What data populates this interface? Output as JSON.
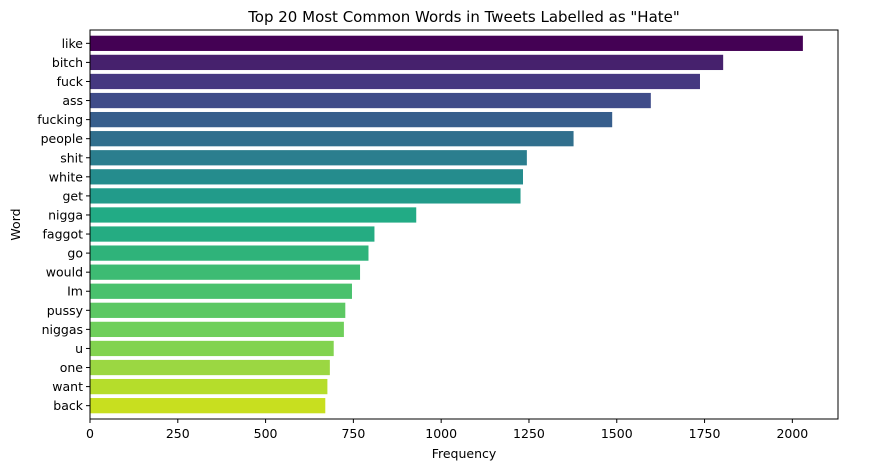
{
  "chart_data": {
    "type": "bar",
    "orientation": "horizontal",
    "title": "Top 20 Most Common Words in Tweets Labelled as \"Hate\"",
    "xlabel": "Frequency",
    "ylabel": "Word",
    "xlim": [
      0,
      2130
    ],
    "xticks": [
      0,
      250,
      500,
      750,
      1000,
      1250,
      1500,
      1750,
      2000
    ],
    "grid": false,
    "palette": "viridis",
    "categories": [
      "like",
      "bitch",
      "fuck",
      "ass",
      "fucking",
      "people",
      "shit",
      "white",
      "get",
      "nigga",
      "faggot",
      "go",
      "would",
      "Im",
      "pussy",
      "niggas",
      "u",
      "one",
      "want",
      "back"
    ],
    "values": [
      2030,
      1803,
      1737,
      1597,
      1487,
      1377,
      1244,
      1233,
      1226,
      929,
      810,
      793,
      769,
      746,
      727,
      723,
      694,
      683,
      676,
      670
    ],
    "colors": [
      "#440154",
      "#46216d",
      "#453880",
      "#3f4c89",
      "#375e8c",
      "#316f8d",
      "#2b7e8e",
      "#258c8d",
      "#229b8a",
      "#22ab85",
      "#25ac82",
      "#2fb37a",
      "#3dbb73",
      "#49c16d",
      "#5cc863",
      "#6fcf5b",
      "#82d34f",
      "#9bd742",
      "#b5dd2b",
      "#c8df1f"
    ]
  }
}
